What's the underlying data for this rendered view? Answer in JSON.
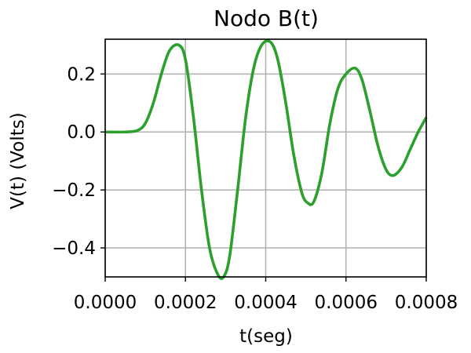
{
  "chart_data": {
    "type": "line",
    "title": "Nodo B(t)",
    "xlabel": "t(seg)",
    "ylabel": "V(t) (Volts)",
    "xlim": [
      0,
      0.0008
    ],
    "ylim": [
      -0.5,
      0.32
    ],
    "x_ticks": [
      0,
      0.0002,
      0.0004,
      0.0006,
      0.0008
    ],
    "x_tick_labels": [
      "0.0000",
      "0.0002",
      "0.0004",
      "0.0006",
      "0.0008"
    ],
    "y_ticks": [
      0.2,
      0.0,
      -0.2,
      -0.4
    ],
    "y_tick_labels": [
      "0.2",
      "0.0",
      "−0.2",
      "−0.4"
    ],
    "grid": true,
    "series": [
      {
        "color": "#2ca02c",
        "x": [
          0,
          5e-05,
          8e-05,
          0.0001,
          0.00012,
          0.00014,
          0.00016,
          0.000183,
          0.0002,
          0.00022,
          0.00024,
          0.00026,
          0.00028,
          0.000295,
          0.00031,
          0.00033,
          0.00035,
          0.00037,
          0.00039,
          0.000412,
          0.00043,
          0.00045,
          0.00047,
          0.00049,
          0.000505,
          0.00052,
          0.00054,
          0.00056,
          0.00058,
          0.0006,
          0.000623,
          0.00064,
          0.00066,
          0.00068,
          0.0007,
          0.000718,
          0.00074,
          0.00076,
          0.00078,
          0.0008
        ],
        "y": [
          0.0,
          0.0,
          0.005,
          0.03,
          0.1,
          0.2,
          0.28,
          0.3,
          0.25,
          0.05,
          -0.2,
          -0.4,
          -0.49,
          -0.5,
          -0.43,
          -0.2,
          0.05,
          0.22,
          0.3,
          0.31,
          0.25,
          0.1,
          -0.08,
          -0.21,
          -0.245,
          -0.24,
          -0.14,
          0.03,
          0.15,
          0.2,
          0.22,
          0.18,
          0.07,
          -0.05,
          -0.13,
          -0.15,
          -0.12,
          -0.06,
          0.0,
          0.05
        ]
      }
    ]
  }
}
